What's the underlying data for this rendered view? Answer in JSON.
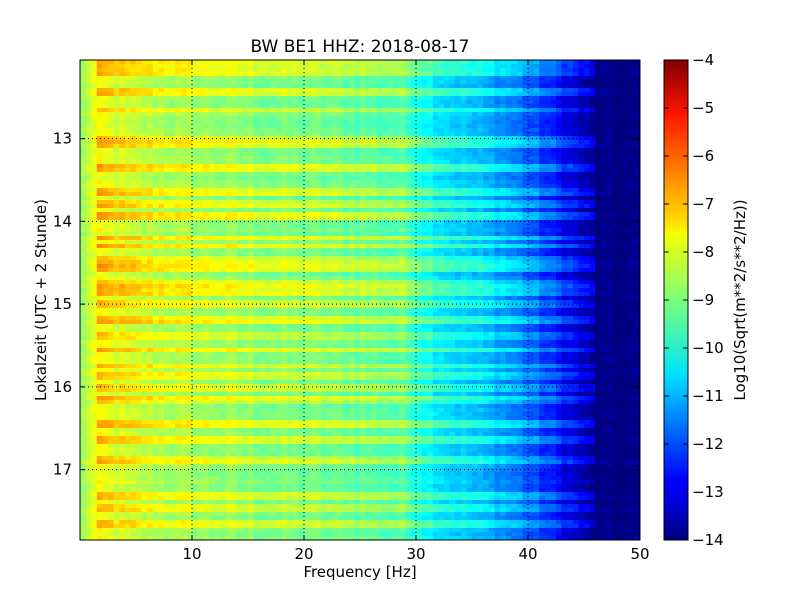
{
  "chart_data": {
    "type": "heatmap",
    "title": "BW BE1 HHZ: 2018-08-17",
    "xlabel": "Frequency [Hz]",
    "ylabel": "Lokalzeit (UTC + 2 Stunde)",
    "xlim": [
      0,
      50
    ],
    "ylim": [
      12.05,
      17.85
    ],
    "y_inverted": true,
    "x_ticks": [
      10,
      20,
      30,
      40,
      50
    ],
    "x_tick_labels": [
      "10",
      "20",
      "30",
      "40",
      "50"
    ],
    "y_ticks": [
      13,
      14,
      15,
      16,
      17
    ],
    "y_tick_labels": [
      "13",
      "14",
      "15",
      "16",
      "17"
    ],
    "grid": true,
    "colormap": "jet",
    "colorbar": {
      "label": "Log10(Sqrt(m**2/s**2/Hz))",
      "min": -14,
      "max": -4,
      "ticks": [
        -4,
        -5,
        -6,
        -7,
        -8,
        -9,
        -10,
        -11,
        -12,
        -13,
        -14
      ],
      "tick_labels": [
        "−4",
        "−5",
        "−6",
        "−7",
        "−8",
        "−9",
        "−10",
        "−11",
        "−12",
        "−13",
        "−14"
      ]
    },
    "frequency_profile": {
      "frequency_hz": [
        0,
        0.8,
        1.5,
        3,
        5,
        8,
        12,
        16,
        20,
        25,
        29,
        31,
        33,
        35,
        37,
        39,
        40,
        42,
        44,
        46,
        50
      ],
      "log10_psd": [
        -9.0,
        -8.2,
        -7.9,
        -8.1,
        -8.4,
        -8.6,
        -8.8,
        -9.0,
        -9.1,
        -9.3,
        -9.5,
        -10.2,
        -10.6,
        -10.9,
        -11.2,
        -11.6,
        -11.9,
        -12.5,
        -13.2,
        -14.0,
        -14.0
      ]
    },
    "noise_bursts_local_hour": [
      12.1,
      12.2,
      12.45,
      12.65,
      13.0,
      13.05,
      13.35,
      13.65,
      13.8,
      13.95,
      14.2,
      14.3,
      14.45,
      14.55,
      14.75,
      14.85,
      15.0,
      15.2,
      15.4,
      15.55,
      15.75,
      15.85,
      16.0,
      16.15,
      16.45,
      16.65,
      16.9,
      17.3,
      17.45,
      17.65
    ]
  }
}
